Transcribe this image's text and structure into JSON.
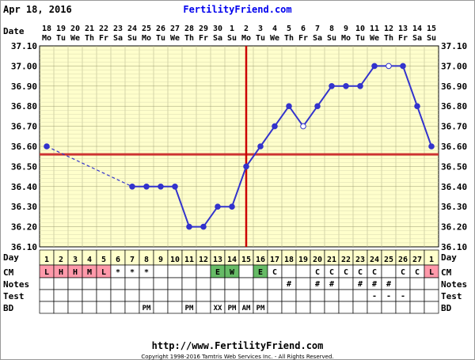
{
  "header": {
    "date": "Apr 18, 2016",
    "site": "FertilityFriend.com"
  },
  "footer": {
    "url": "http://www.FertilityFriend.com",
    "copyright": "Copyright 1998-2016 Tamtris Web Services Inc. - All Rights Reserved."
  },
  "row_labels": {
    "date": "Date",
    "day": "Day",
    "cm": "CM",
    "notes": "Notes",
    "test": "Test",
    "bd": "BD"
  },
  "colors": {
    "grid_bg": "#ffffcc",
    "line": "#3333cc",
    "coverline": "#cc3333",
    "ovulation": "#cc0000",
    "cm_red": "#ff99aa",
    "cm_green": "#66bb66"
  },
  "chart_data": {
    "type": "line",
    "ylim": [
      36.1,
      37.1
    ],
    "yticks": [
      "36.10",
      "36.20",
      "36.30",
      "36.40",
      "36.50",
      "36.60",
      "36.70",
      "36.80",
      "36.90",
      "37.00",
      "37.10"
    ],
    "coverline": 36.56,
    "ovulation_day": 15,
    "dates": [
      "18",
      "19",
      "20",
      "21",
      "22",
      "23",
      "24",
      "25",
      "26",
      "27",
      "28",
      "29",
      "30",
      "1",
      "2",
      "3",
      "4",
      "5",
      "6",
      "7",
      "8",
      "9",
      "10",
      "11",
      "12",
      "13",
      "14",
      "15"
    ],
    "weekdays": [
      "Mo",
      "Tu",
      "We",
      "Th",
      "Fr",
      "Sa",
      "Su",
      "Mo",
      "Tu",
      "We",
      "Th",
      "Fr",
      "Sa",
      "Su",
      "Mo",
      "Tu",
      "We",
      "Th",
      "Fr",
      "Sa",
      "Su",
      "Mo",
      "Tu",
      "We",
      "Th",
      "Fr",
      "Sa",
      "Su"
    ],
    "days": [
      "1",
      "2",
      "3",
      "4",
      "5",
      "6",
      "7",
      "8",
      "9",
      "10",
      "11",
      "12",
      "13",
      "14",
      "15",
      "16",
      "17",
      "18",
      "19",
      "20",
      "21",
      "22",
      "23",
      "24",
      "25",
      "26",
      "27",
      "1"
    ],
    "temps": [
      36.6,
      null,
      null,
      null,
      null,
      null,
      36.4,
      36.4,
      36.4,
      36.4,
      36.2,
      36.2,
      36.3,
      36.3,
      36.5,
      36.6,
      36.7,
      36.8,
      36.7,
      36.8,
      36.9,
      36.9,
      36.9,
      37.0,
      37.0,
      37.0,
      36.8,
      36.6
    ],
    "open_points": [
      18,
      24
    ],
    "dashed_segments": [
      [
        0,
        6
      ]
    ],
    "cm": [
      "L",
      "H",
      "H",
      "M",
      "L",
      "*",
      "*",
      "*",
      "",
      "",
      "",
      "",
      "E",
      "W",
      "",
      "E",
      "C",
      "",
      "",
      "C",
      "C",
      "C",
      "C",
      "C",
      "",
      "C",
      "C",
      "L"
    ],
    "notes": [
      "",
      "",
      "",
      "",
      "",
      "",
      "",
      "",
      "",
      "",
      "",
      "",
      "",
      "",
      "",
      "",
      "",
      "#",
      "",
      "#",
      "#",
      "",
      "#",
      "#",
      "#",
      "",
      "",
      ""
    ],
    "test": [
      "",
      "",
      "",
      "",
      "",
      "",
      "",
      "",
      "",
      "",
      "",
      "",
      "",
      "",
      "",
      "",
      "",
      "",
      "",
      "",
      "",
      "",
      "",
      "-",
      "-",
      "-",
      "",
      ""
    ],
    "bd": [
      "",
      "",
      "",
      "",
      "",
      "",
      "",
      "PM",
      "",
      "",
      "PM",
      "",
      "XX",
      "PM",
      "AM",
      "PM",
      "",
      "",
      "",
      "",
      "",
      "",
      "",
      "",
      "",
      "",
      "",
      ""
    ]
  }
}
